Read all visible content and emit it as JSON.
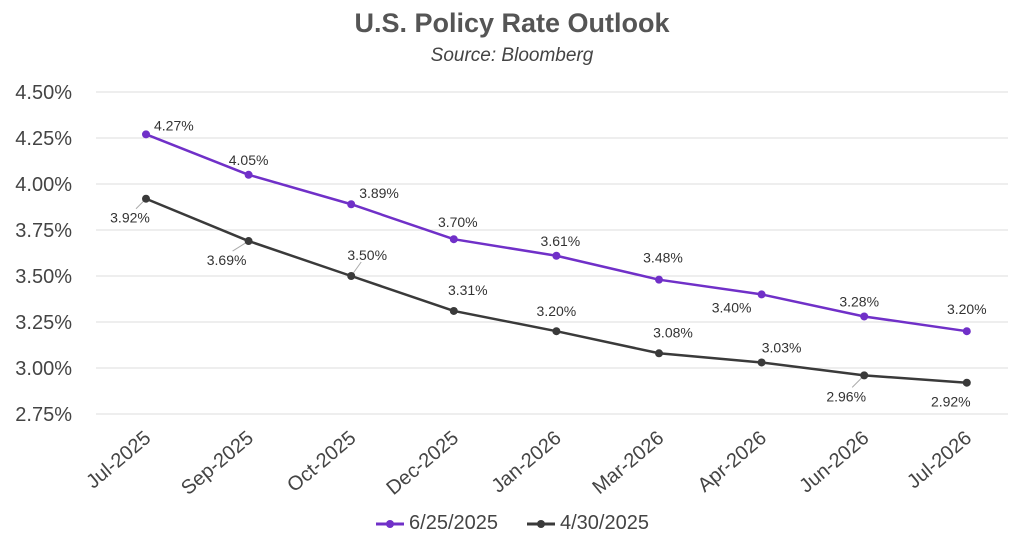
{
  "chart_data": {
    "type": "line",
    "title": "U.S. Policy Rate Outlook",
    "subtitle": "Source: Bloomberg",
    "categories": [
      "Jul-2025",
      "Sep-2025",
      "Oct-2025",
      "Dec-2025",
      "Jan-2026",
      "Mar-2026",
      "Apr-2026",
      "Jun-2026",
      "Jul-2026"
    ],
    "ylim": [
      2.75,
      4.5
    ],
    "yticks": [
      2.75,
      3.0,
      3.25,
      3.5,
      3.75,
      4.0,
      4.25,
      4.5
    ],
    "ytick_labels": [
      "2.75%",
      "3.00%",
      "3.25%",
      "3.50%",
      "3.75%",
      "4.00%",
      "4.25%",
      "4.50%"
    ],
    "grid": true,
    "legend_position": "bottom",
    "series": [
      {
        "name": "6/25/2025",
        "color": "#7030c8",
        "values": [
          4.27,
          4.05,
          3.89,
          3.7,
          3.61,
          3.48,
          3.4,
          3.28,
          3.2
        ],
        "labels": [
          "4.27%",
          "4.05%",
          "3.89%",
          "3.70%",
          "3.61%",
          "3.48%",
          "3.40%",
          "3.28%",
          "3.20%"
        ]
      },
      {
        "name": "4/30/2025",
        "color": "#3a3a3a",
        "values": [
          3.92,
          3.69,
          3.5,
          3.31,
          3.2,
          3.08,
          3.03,
          2.96,
          2.92
        ],
        "labels": [
          "3.92%",
          "3.69%",
          "3.50%",
          "3.31%",
          "3.20%",
          "3.08%",
          "3.03%",
          "2.96%",
          "2.92%"
        ]
      }
    ]
  }
}
